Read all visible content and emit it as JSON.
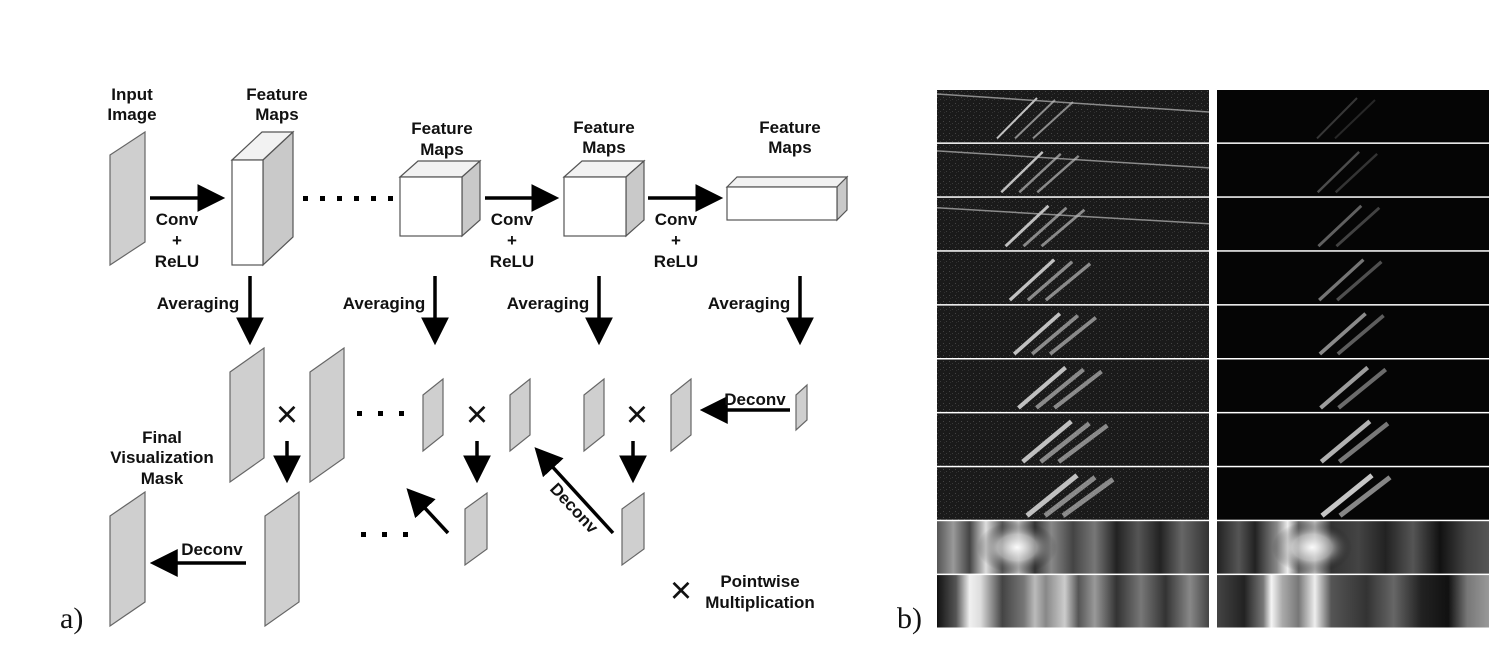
{
  "panel_a": {
    "label": "a)",
    "input_label": [
      "Input",
      "Image"
    ],
    "feature_maps_label": [
      "Feature",
      "Maps"
    ],
    "conv_relu_label": [
      "Conv",
      "+",
      "ReLU"
    ],
    "averaging_label": "Averaging",
    "deconv_label": "Deconv",
    "final_mask_label": [
      "Final",
      "Visualization",
      "Mask"
    ],
    "legend_symbol": "×",
    "legend_label": [
      "Pointwise",
      "Multiplication"
    ],
    "multiply_symbol": "×"
  },
  "panel_b": {
    "label": "b)",
    "rows": 10,
    "columns": 2
  }
}
